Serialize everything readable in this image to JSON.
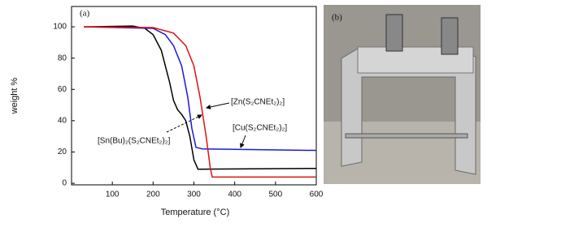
{
  "chart_data": {
    "type": "line",
    "panel_labels": [
      "(a)",
      "(b)"
    ],
    "x_label": "Temperature (°C)",
    "y_label": "weight %",
    "xlim": [
      0,
      600
    ],
    "xticks": [
      100,
      200,
      300,
      400,
      500,
      600
    ],
    "ylim": [
      -1,
      113
    ],
    "yticks": [
      0,
      20,
      40,
      60,
      80,
      100
    ],
    "series": [
      {
        "name": "[Sn(Bu)₂(S₂CNEt₂)₂]",
        "color": "#000000",
        "x": [
          30,
          150,
          180,
          200,
          220,
          240,
          250,
          260,
          270,
          280,
          290,
          300,
          310,
          600
        ],
        "values": [
          100,
          100.5,
          99,
          95,
          85,
          65,
          53,
          47,
          44,
          40,
          30,
          15,
          9,
          9.5
        ]
      },
      {
        "name": "[Cu(S₂CNEt₂)₂]",
        "color": "#1a1adc",
        "x": [
          30,
          200,
          230,
          250,
          270,
          285,
          295,
          305,
          320,
          600
        ],
        "values": [
          100,
          99,
          95,
          88,
          75,
          55,
          35,
          23,
          22,
          21
        ]
      },
      {
        "name": "[Zn(S₂CNEt₂)₂]",
        "color": "#e01010",
        "x": [
          30,
          200,
          250,
          280,
          300,
          315,
          330,
          340,
          345,
          600
        ],
        "values": [
          100,
          99.5,
          96,
          88,
          75,
          55,
          30,
          10,
          4,
          4
        ]
      }
    ]
  }
}
